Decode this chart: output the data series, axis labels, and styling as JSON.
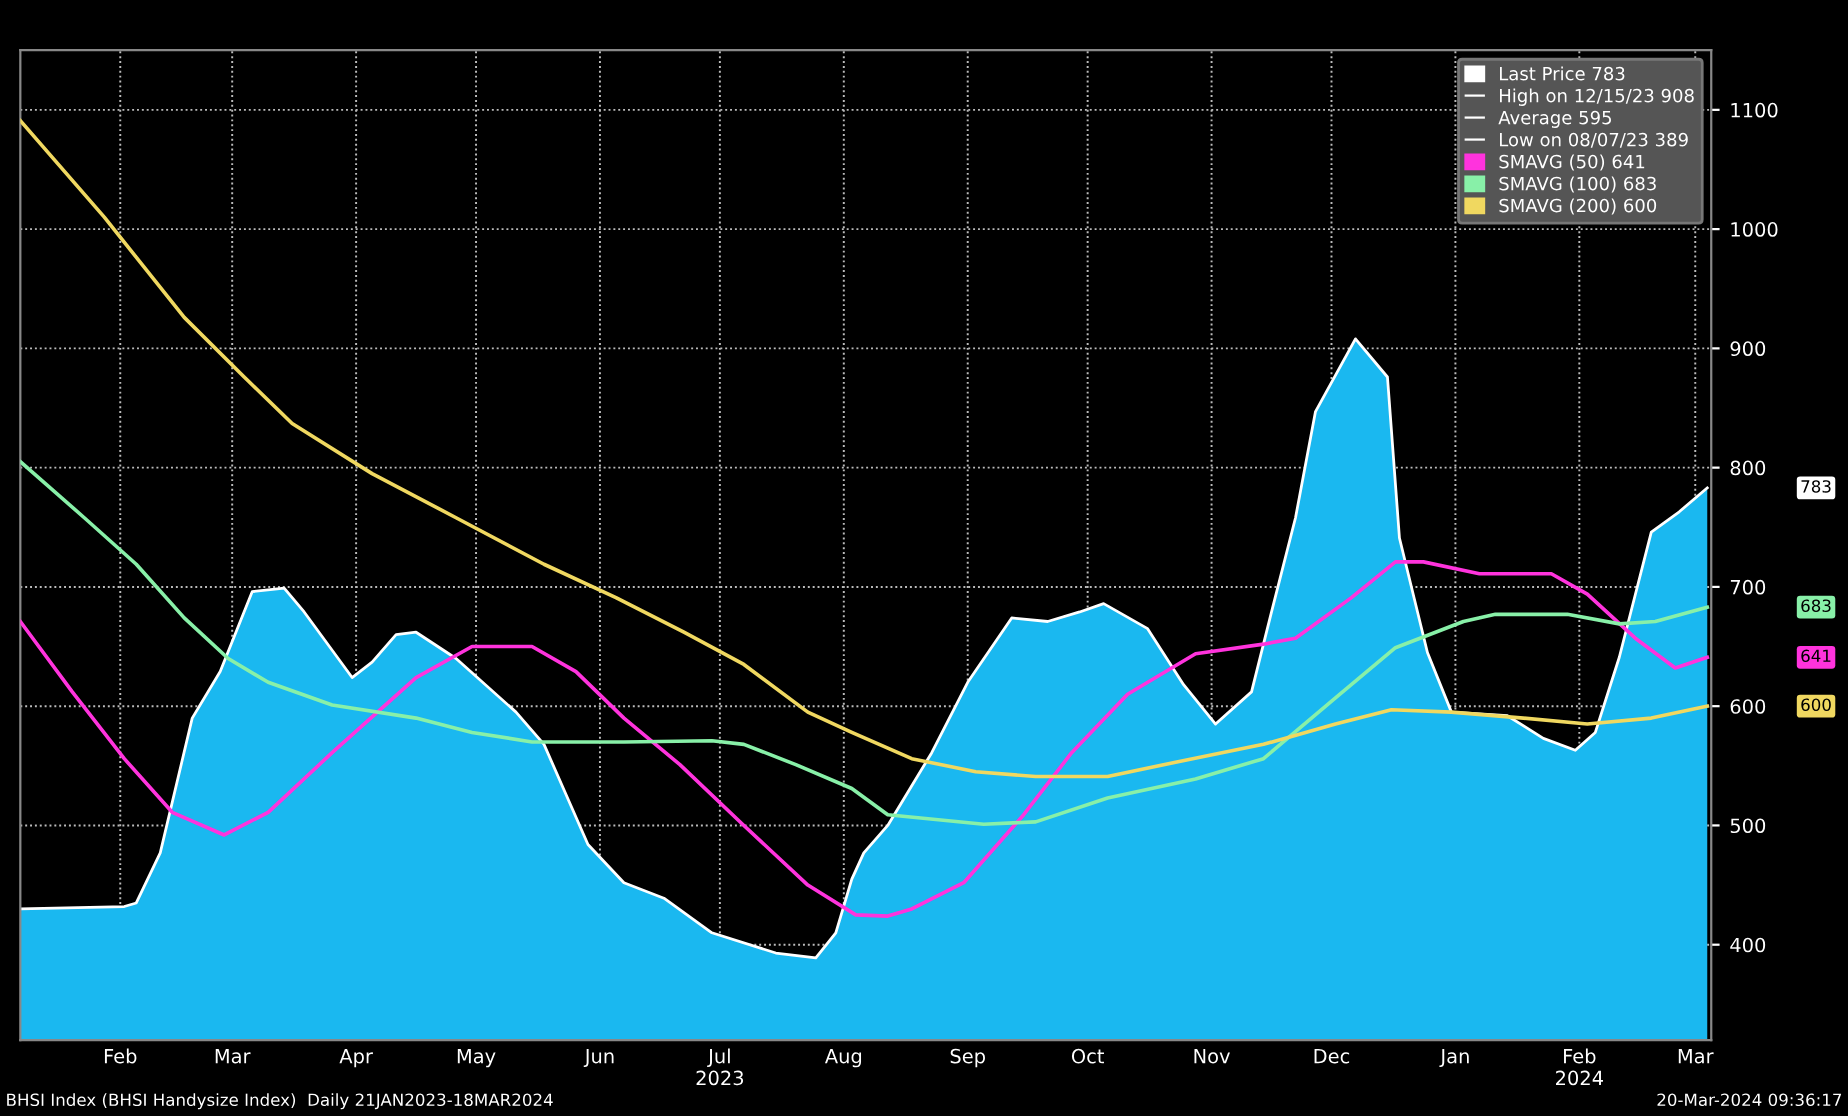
{
  "chart_data": {
    "type": "line",
    "xlim": [
      "2023-01-21",
      "2024-03-19"
    ],
    "xticks": [
      {
        "value": "2023-02-15",
        "label": "Feb"
      },
      {
        "value": "2023-03-15",
        "label": "Mar"
      },
      {
        "value": "2023-04-15",
        "label": "Apr"
      },
      {
        "value": "2023-05-15",
        "label": "May"
      },
      {
        "value": "2023-06-15",
        "label": "Jun"
      },
      {
        "value": "2023-07-15",
        "label": "Jul\n2023"
      },
      {
        "value": "2023-08-15",
        "label": "Aug"
      },
      {
        "value": "2023-09-15",
        "label": "Sep"
      },
      {
        "value": "2023-10-15",
        "label": "Oct"
      },
      {
        "value": "2023-11-15",
        "label": "Nov"
      },
      {
        "value": "2023-12-15",
        "label": "Dec"
      },
      {
        "value": "2024-01-15",
        "label": "Jan"
      },
      {
        "value": "2024-02-15",
        "label": "Feb\n2024"
      },
      {
        "value": "2024-03-15",
        "label": "Mar"
      }
    ],
    "ylim": [
      320,
      1150
    ],
    "yticks": [
      400,
      500,
      600,
      700,
      800,
      900,
      1000,
      1100
    ],
    "grid": true,
    "legend": "top right",
    "series": [
      {
        "name": "Last Price 783",
        "type": "area",
        "color": "#1ab8f0",
        "x": [
          "2023-01-21",
          "2023-02-16",
          "2023-02-19",
          "2023-02-25",
          "2023-03-05",
          "2023-03-12",
          "2023-03-20",
          "2023-03-28",
          "2023-04-02",
          "2023-04-14",
          "2023-04-19",
          "2023-04-25",
          "2023-04-30",
          "2023-05-10",
          "2023-05-25",
          "2023-06-01",
          "2023-06-12",
          "2023-06-21",
          "2023-07-01",
          "2023-07-13",
          "2023-07-29",
          "2023-08-08",
          "2023-08-13",
          "2023-08-17",
          "2023-08-20",
          "2023-08-26",
          "2023-09-06",
          "2023-09-15",
          "2023-09-26",
          "2023-10-05",
          "2023-10-13",
          "2023-10-19",
          "2023-10-30",
          "2023-11-08",
          "2023-11-16",
          "2023-11-25",
          "2023-11-30",
          "2023-12-06",
          "2023-12-11",
          "2023-12-21",
          "2023-12-29",
          "2024-01-01",
          "2024-01-08",
          "2024-01-14",
          "2024-01-28",
          "2024-02-06",
          "2024-02-14",
          "2024-02-19",
          "2024-02-25",
          "2024-03-04",
          "2024-03-11",
          "2024-03-18"
        ],
        "values": [
          430,
          432,
          435,
          477,
          590,
          629,
          696,
          699,
          679,
          624,
          637,
          660,
          662,
          640,
          595,
          568,
          484,
          452,
          439,
          410,
          393,
          389,
          410,
          455,
          477,
          500,
          561,
          620,
          674,
          671,
          679,
          686,
          665,
          618,
          585,
          612,
          679,
          758,
          847,
          908,
          876,
          741,
          645,
          595,
          592,
          573,
          563,
          578,
          641,
          746,
          763,
          783
        ]
      },
      {
        "name": "SMAVG (50) 641",
        "color": "#ff33dd",
        "x": [
          "2023-01-21",
          "2023-02-03",
          "2023-02-16",
          "2023-02-28",
          "2023-03-13",
          "2023-03-24",
          "2023-04-09",
          "2023-04-30",
          "2023-05-14",
          "2023-05-29",
          "2023-06-09",
          "2023-06-21",
          "2023-07-05",
          "2023-07-21",
          "2023-08-06",
          "2023-08-18",
          "2023-08-26",
          "2023-09-01",
          "2023-09-14",
          "2023-09-29",
          "2023-10-11",
          "2023-10-25",
          "2023-11-11",
          "2023-11-28",
          "2023-12-06",
          "2023-12-20",
          "2023-12-31",
          "2024-01-07",
          "2024-01-21",
          "2024-02-08",
          "2024-02-17",
          "2024-02-29",
          "2024-03-10",
          "2024-03-18"
        ],
        "values": [
          671,
          612,
          556,
          511,
          492,
          511,
          561,
          624,
          650,
          650,
          629,
          590,
          551,
          500,
          450,
          425,
          424,
          430,
          452,
          509,
          561,
          610,
          644,
          652,
          657,
          691,
          721,
          721,
          711,
          711,
          694,
          657,
          632,
          641
        ]
      },
      {
        "name": "SMAVG (100) 683",
        "color": "#88f0a8",
        "x": [
          "2023-01-21",
          "2023-02-06",
          "2023-02-19",
          "2023-03-03",
          "2023-03-14",
          "2023-03-24",
          "2023-04-09",
          "2023-04-30",
          "2023-05-14",
          "2023-05-29",
          "2023-06-21",
          "2023-07-13",
          "2023-07-21",
          "2023-08-03",
          "2023-08-17",
          "2023-08-26",
          "2023-09-19",
          "2023-10-02",
          "2023-10-20",
          "2023-11-11",
          "2023-11-28",
          "2023-12-16",
          "2023-12-31",
          "2024-01-17",
          "2024-01-25",
          "2024-02-12",
          "2024-02-25",
          "2024-03-05",
          "2024-03-18"
        ],
        "values": [
          805,
          758,
          719,
          674,
          640,
          620,
          601,
          590,
          578,
          570,
          570,
          571,
          568,
          551,
          531,
          509,
          501,
          503,
          523,
          539,
          556,
          607,
          649,
          671,
          677,
          677,
          669,
          671,
          683
        ]
      },
      {
        "name": "SMAVG (200) 600",
        "color": "#f0d860",
        "x": [
          "2023-01-21",
          "2023-02-11",
          "2023-03-03",
          "2023-03-18",
          "2023-03-30",
          "2023-04-19",
          "2023-05-10",
          "2023-06-01",
          "2023-06-19",
          "2023-07-06",
          "2023-07-21",
          "2023-08-06",
          "2023-08-17",
          "2023-09-01",
          "2023-09-17",
          "2023-10-02",
          "2023-10-20",
          "2023-11-06",
          "2023-11-28",
          "2023-12-16",
          "2023-12-30",
          "2024-01-14",
          "2024-02-01",
          "2024-02-17",
          "2024-03-04",
          "2024-03-18"
        ],
        "values": [
          1091,
          1010,
          926,
          876,
          837,
          795,
          758,
          719,
          691,
          662,
          635,
          595,
          578,
          556,
          545,
          541,
          541,
          553,
          568,
          585,
          597,
          595,
          590,
          585,
          590,
          600
        ]
      }
    ],
    "annotations": [
      "High on 12/15/23 908",
      "Average 595",
      "Low on 08/07/23 389",
      "BHSI Index (BHSI Handysize Index)  Daily 21JAN2023-18MAR2024",
      "20-Mar-2024 09:36:17",
      "783",
      "641",
      "683",
      "600"
    ]
  }
}
